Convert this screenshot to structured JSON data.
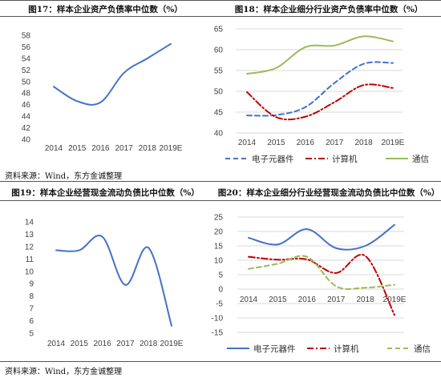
{
  "source_label": "资料来源：Wind，东方金诚整理",
  "chart_data": [
    {
      "id": "c17",
      "type": "line",
      "title": "图17：样本企业资产负债率中位数（%）",
      "categories": [
        "2014",
        "2015",
        "2016",
        "2017",
        "2018",
        "2019E"
      ],
      "yticks": [
        "58",
        "56",
        "54",
        "52",
        "50",
        "48",
        "46",
        "44",
        "42",
        "40"
      ],
      "ylim": [
        40,
        58
      ],
      "grid": false,
      "series": [
        {
          "values": [
            49.1,
            46.6,
            46.4,
            51.5,
            54.0,
            56.5
          ],
          "color": "#4472c4",
          "style": "solid"
        }
      ]
    },
    {
      "id": "c18",
      "type": "line",
      "title": "图18：样本企业细分行业资产负债率中位数（%）",
      "categories": [
        "2014",
        "2015",
        "2016",
        "2017",
        "2018",
        "2019E"
      ],
      "yticks": [
        "65",
        "60",
        "55",
        "50",
        "45",
        "40"
      ],
      "ylim": [
        40,
        65
      ],
      "grid": true,
      "legend": "bottom",
      "series": [
        {
          "name": "电子元器件",
          "values": [
            44.2,
            44.3,
            46.2,
            52.0,
            56.6,
            56.8
          ],
          "color": "#4472c4",
          "style": "dash"
        },
        {
          "name": "计算机",
          "values": [
            49.8,
            43.8,
            43.9,
            47.4,
            51.5,
            50.8
          ],
          "color": "#c00000",
          "style": "dashdot"
        },
        {
          "name": "通信",
          "values": [
            54.2,
            55.6,
            60.6,
            61.0,
            63.2,
            62.0
          ],
          "color": "#9bbb59",
          "style": "solid"
        }
      ]
    },
    {
      "id": "c19",
      "type": "line",
      "title": "图19：样本企业经营现金流动负债比中位数（%）",
      "categories": [
        "2014",
        "2015",
        "2016",
        "2017",
        "2018",
        "2019E"
      ],
      "yticks": [
        "14",
        "13",
        "12",
        "11",
        "10",
        "9",
        "8",
        "7",
        "6",
        "5"
      ],
      "ylim": [
        5,
        14
      ],
      "grid": false,
      "series": [
        {
          "values": [
            11.7,
            11.7,
            12.8,
            8.9,
            11.9,
            5.6
          ],
          "color": "#4472c4",
          "style": "solid"
        }
      ]
    },
    {
      "id": "c20",
      "type": "line",
      "title": "图20：样本企业细分行业经营现金流动负债比中位数（%）",
      "categories": [
        "2014",
        "2015",
        "2016",
        "2017",
        "2018",
        "2019E"
      ],
      "yticks": [
        "25",
        "20",
        "15",
        "10",
        "5",
        "0",
        "-5",
        "-10",
        "-15"
      ],
      "ylim": [
        -15,
        25
      ],
      "grid": true,
      "legend": "bottom",
      "series": [
        {
          "name": "电子元器件",
          "values": [
            17.8,
            15.5,
            20.8,
            14.2,
            15.0,
            22.3
          ],
          "color": "#4472c4",
          "style": "solid"
        },
        {
          "name": "计算机",
          "values": [
            11.2,
            10.2,
            10.3,
            5.6,
            11.5,
            -9.0
          ],
          "color": "#c00000",
          "style": "dashdot"
        },
        {
          "name": "通信",
          "values": [
            7.0,
            8.8,
            11.2,
            1.0,
            0.5,
            1.5
          ],
          "color": "#9bbb59",
          "style": "dash"
        }
      ]
    }
  ]
}
